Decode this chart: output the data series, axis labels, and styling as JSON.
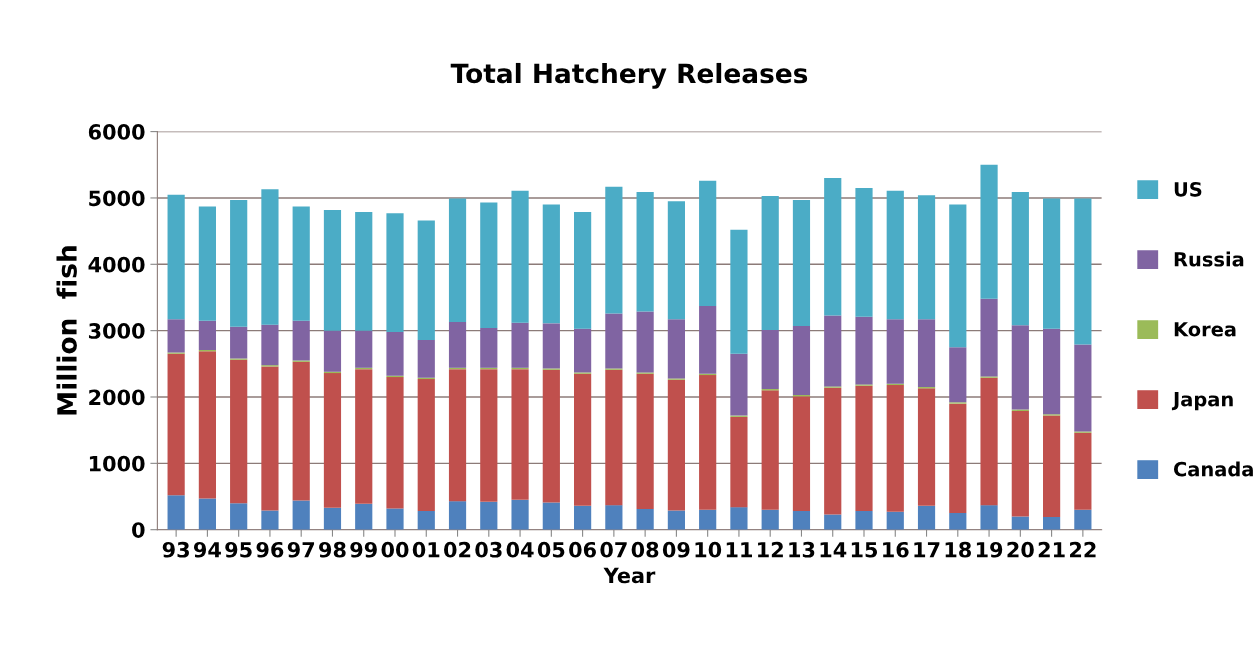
{
  "chart_data": {
    "type": "bar",
    "title": "Total Hatchery Releases",
    "xlabel": "Year",
    "ylabel": "Million  fish",
    "categories": [
      "93",
      "94",
      "95",
      "96",
      "97",
      "98",
      "99",
      "00",
      "01",
      "02",
      "03",
      "04",
      "05",
      "06",
      "07",
      "08",
      "09",
      "10",
      "11",
      "12",
      "13",
      "14",
      "15",
      "16",
      "17",
      "18",
      "19",
      "20",
      "21",
      "22"
    ],
    "stacked": true,
    "ylim": [
      0,
      6000
    ],
    "yticks": [
      0,
      1000,
      2000,
      3000,
      4000,
      5000,
      6000
    ],
    "grid": "y",
    "legend": "right",
    "series": [
      {
        "name": "Canada",
        "color": "#4f81bd",
        "values": [
          520,
          470,
          400,
          290,
          440,
          330,
          390,
          320,
          280,
          430,
          420,
          450,
          410,
          360,
          370,
          310,
          290,
          300,
          340,
          300,
          280,
          230,
          280,
          270,
          360,
          250,
          370,
          200,
          190,
          300
        ]
      },
      {
        "name": "Japan",
        "color": "#c0504d",
        "values": [
          2130,
          2220,
          2160,
          2170,
          2090,
          2030,
          2030,
          1980,
          1990,
          1990,
          2000,
          1970,
          2000,
          1990,
          2040,
          2040,
          1970,
          2030,
          1360,
          1800,
          1730,
          1910,
          1890,
          1910,
          1770,
          1650,
          1920,
          1590,
          1530,
          1160
        ]
      },
      {
        "name": "Korea",
        "color": "#9bbb59",
        "values": [
          20,
          20,
          20,
          20,
          20,
          20,
          20,
          20,
          20,
          20,
          20,
          20,
          20,
          20,
          20,
          20,
          20,
          20,
          20,
          20,
          20,
          20,
          20,
          20,
          20,
          20,
          20,
          20,
          20,
          20
        ]
      },
      {
        "name": "Russia",
        "color": "#8064a2",
        "values": [
          500,
          440,
          480,
          610,
          600,
          620,
          560,
          660,
          570,
          690,
          600,
          680,
          680,
          660,
          830,
          920,
          890,
          1020,
          930,
          890,
          1040,
          1070,
          1020,
          970,
          1020,
          830,
          1170,
          1270,
          1290,
          1310
        ]
      },
      {
        "name": "US",
        "color": "#4bacc6",
        "values": [
          1880,
          1720,
          1910,
          2040,
          1720,
          1820,
          1790,
          1790,
          1800,
          1860,
          1890,
          1990,
          1790,
          1760,
          1910,
          1800,
          1780,
          1890,
          1870,
          2020,
          1900,
          2070,
          1940,
          1940,
          1870,
          2150,
          2020,
          2010,
          1960,
          2200
        ]
      }
    ]
  }
}
